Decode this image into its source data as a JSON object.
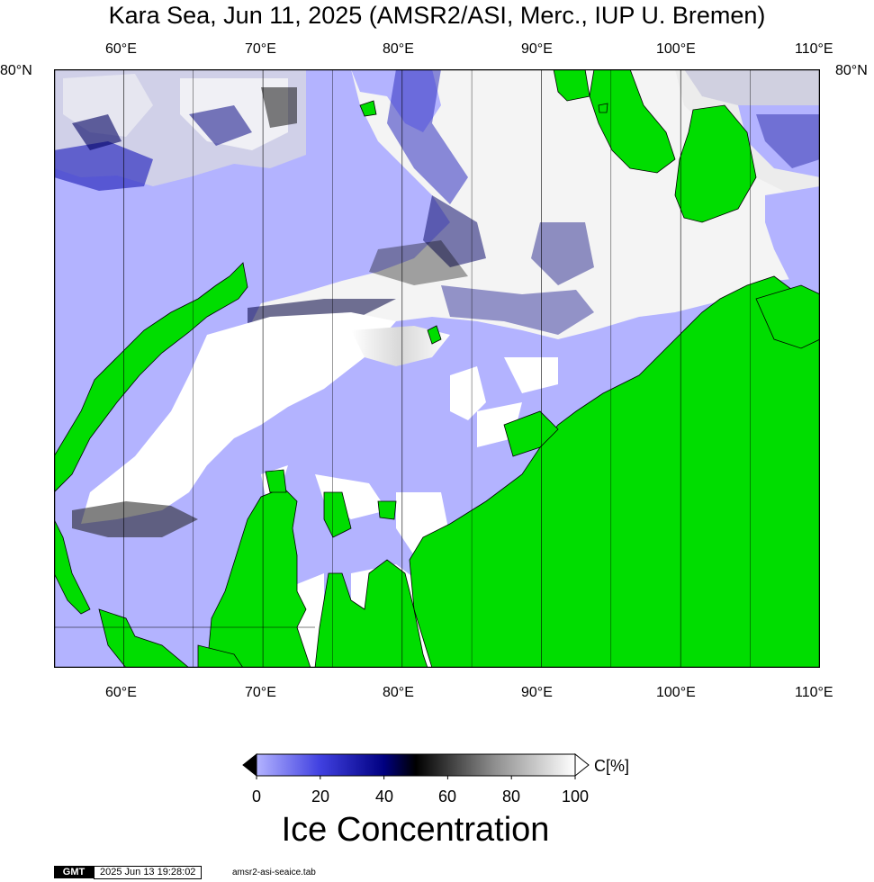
{
  "title": "Kara Sea, Jun 11, 2025 (AMSR2/ASI, Merc., IUP U. Bremen)",
  "map": {
    "lon_range": [
      55,
      110
    ],
    "lat_top": "80°N",
    "top_ticks": [
      "60°E",
      "70°E",
      "80°E",
      "90°E",
      "100°E",
      "110°E"
    ],
    "bottom_ticks": [
      "60°E",
      "70°E",
      "80°E",
      "90°E",
      "100°E",
      "110°E"
    ],
    "left_lat_label": "80°N",
    "right_lat_label": "80°N",
    "colors": {
      "water": "#b3b3ff",
      "land": "#00dd00",
      "ice": "#ffffff",
      "coast": "#000000"
    }
  },
  "colorbar": {
    "title": "Ice Concentration",
    "unit": "C[%]",
    "ticks": [
      "0",
      "20",
      "40",
      "60",
      "80",
      "100"
    ],
    "range": [
      0,
      100
    ],
    "stops": [
      "#b3b3ff",
      "#2a2ad8",
      "#000080",
      "#000000",
      "#ffffff"
    ]
  },
  "footer": {
    "logo": "GMT",
    "timestamp": "2025 Jun 13 19:28:02",
    "file": "amsr2-asi-seaice.tab"
  }
}
